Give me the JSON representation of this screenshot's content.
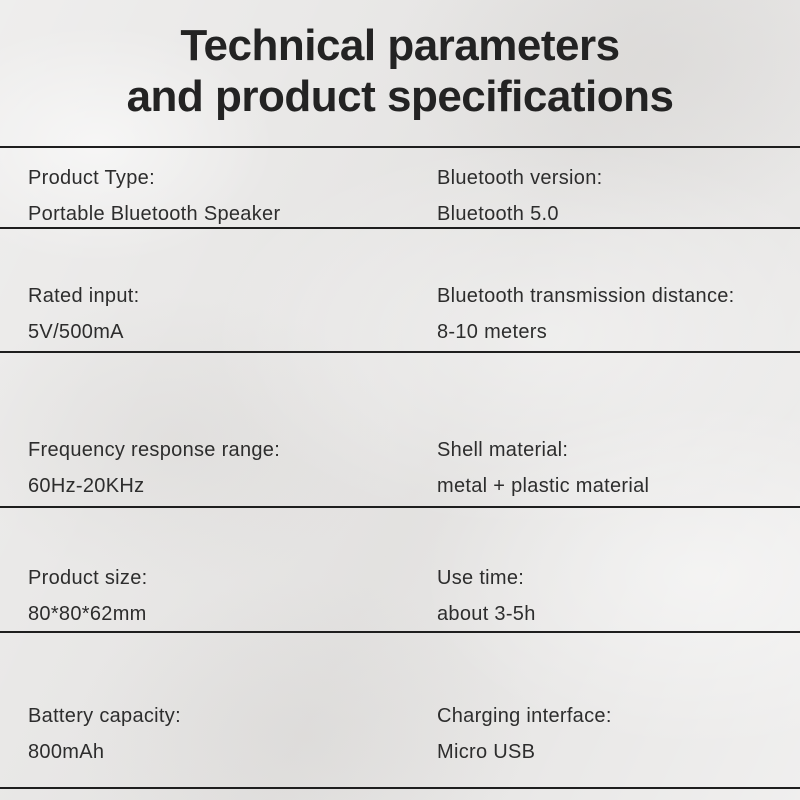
{
  "title": {
    "line1": "Technical parameters",
    "line2": "and product specifications"
  },
  "colors": {
    "background": "#e9e8e7",
    "text": "#2d2d2d",
    "rule": "#1e1e1e"
  },
  "specs": [
    {
      "left_label": "Product Type:",
      "left_value": "Portable Bluetooth Speaker",
      "right_label": "Bluetooth version:",
      "right_value": "Bluetooth 5.0"
    },
    {
      "left_label": "Rated input:",
      "left_value": "5V/500mA",
      "right_label": "Bluetooth transmission distance:",
      "right_value": "8-10 meters"
    },
    {
      "left_label": "Frequency response range:",
      "left_value": "60Hz-20KHz",
      "right_label": "Shell material:",
      "right_value": "metal + plastic material"
    },
    {
      "left_label": "Product size:",
      "left_value": "80*80*62mm",
      "right_label": "Use time:",
      "right_value": "about 3-5h"
    },
    {
      "left_label": "Battery capacity:",
      "left_value": "800mAh",
      "right_label": "Charging interface:",
      "right_value": "Micro USB"
    }
  ]
}
